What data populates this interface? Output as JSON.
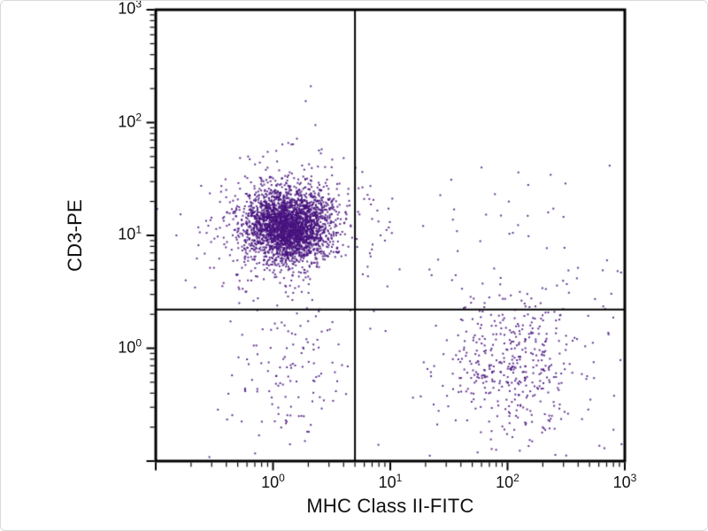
{
  "figure": {
    "background": "#ffffff",
    "frame_color": "#000000",
    "dot_color": "#46127e"
  },
  "chart_data": {
    "type": "scatter",
    "title": "",
    "xlabel": "MHC Class II-FITC",
    "ylabel": "CD3-PE",
    "x_scale": "log",
    "y_scale": "log",
    "xlim": [
      0.1,
      1000
    ],
    "ylim": [
      0.1,
      1000
    ],
    "x_range_log10": [
      -1,
      3
    ],
    "y_range_log10": [
      -1,
      3
    ],
    "tick_label_base": "10",
    "x_tick_exponents": [
      0,
      1,
      2,
      3
    ],
    "y_tick_exponents": [
      3,
      2,
      1,
      0
    ],
    "grid": false,
    "legend": "none",
    "quadrant_gate": {
      "x": 5,
      "y": 2.2
    },
    "dot_size_px": 2,
    "seed": 1337,
    "populations": [
      {
        "name": "cluster-upper-left-core",
        "center": [
          1.35,
          12
        ],
        "sigma_log10": [
          0.18,
          0.16
        ],
        "n": 2600
      },
      {
        "name": "cluster-upper-left-halo",
        "center": [
          1.3,
          11
        ],
        "sigma_log10": [
          0.33,
          0.3
        ],
        "n": 430
      },
      {
        "name": "cluster-lower-right-core",
        "center": [
          110,
          0.75
        ],
        "sigma_log10": [
          0.28,
          0.33
        ],
        "n": 380
      },
      {
        "name": "cluster-lower-right-halo",
        "center": [
          130,
          0.55
        ],
        "sigma_log10": [
          0.46,
          0.52
        ],
        "n": 90
      },
      {
        "name": "cluster-lower-left",
        "center": [
          1.5,
          0.6
        ],
        "sigma_log10": [
          0.3,
          0.36
        ],
        "n": 130
      },
      {
        "name": "sparse-upper-right",
        "center": [
          60,
          11
        ],
        "sigma_log10": [
          0.6,
          0.38
        ],
        "n": 38
      },
      {
        "name": "sparse-right-edge",
        "center": [
          600,
          2.4
        ],
        "sigma_log10": [
          0.26,
          0.32
        ],
        "n": 22
      }
    ],
    "outlier_points": [
      [
        2.1,
        210
      ],
      [
        1.9,
        155
      ],
      [
        2.3,
        95
      ],
      [
        1.6,
        72
      ],
      [
        2.6,
        58
      ],
      [
        0.9,
        55
      ],
      [
        3.2,
        47
      ],
      [
        1.2,
        64
      ],
      [
        60,
        40
      ],
      [
        150,
        28
      ],
      [
        35,
        17
      ],
      [
        9,
        9
      ],
      [
        12,
        5
      ],
      [
        7,
        14
      ],
      [
        0.15,
        10
      ],
      [
        0.18,
        4
      ]
    ]
  }
}
